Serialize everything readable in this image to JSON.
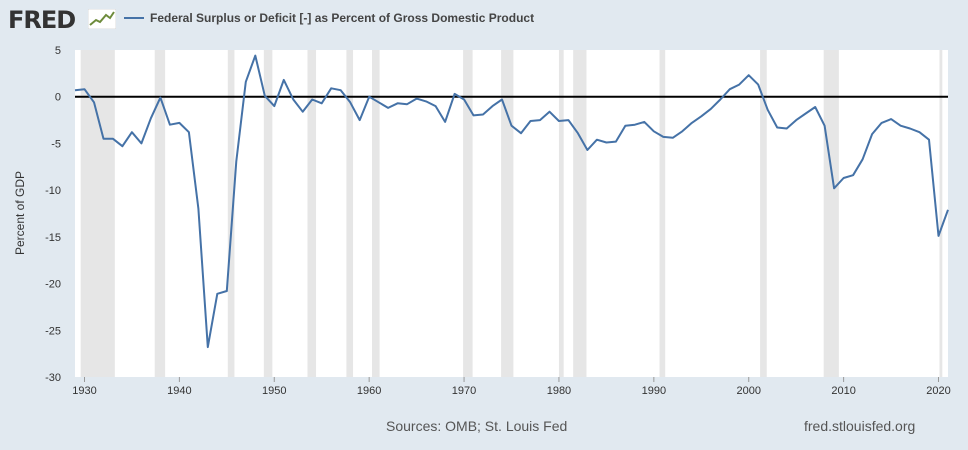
{
  "header": {
    "logo_text": "FRED",
    "logo_icon": "trend-line-icon",
    "legend_label": "Federal Surplus or Deficit [-] as Percent of Gross Domestic Product",
    "series_color": "#4572a7"
  },
  "footer": {
    "sources": "Sources: OMB; St. Louis Fed",
    "url": "fred.stlouisfed.org"
  },
  "chart_data": {
    "type": "line",
    "title": "",
    "xlabel": "",
    "ylabel": "Percent of GDP",
    "xlim": [
      1929,
      2021
    ],
    "ylim": [
      -30,
      5
    ],
    "yticks": [
      5,
      0,
      -5,
      -10,
      -15,
      -20,
      -25,
      -30
    ],
    "xticks": [
      1930,
      1940,
      1950,
      1960,
      1970,
      1980,
      1990,
      2000,
      2010,
      2020
    ],
    "grid": false,
    "zero_line": true,
    "recession_shading_color": "#e6e6e6",
    "recessions": [
      [
        1929.6,
        1933.2
      ],
      [
        1937.4,
        1938.5
      ],
      [
        1945.1,
        1945.8
      ],
      [
        1948.9,
        1949.8
      ],
      [
        1953.5,
        1954.4
      ],
      [
        1957.6,
        1958.3
      ],
      [
        1960.3,
        1961.1
      ],
      [
        1969.9,
        1970.9
      ],
      [
        1973.9,
        1975.2
      ],
      [
        1980.0,
        1980.5
      ],
      [
        1981.5,
        1982.9
      ],
      [
        1990.6,
        1991.2
      ],
      [
        2001.2,
        2001.9
      ],
      [
        2007.9,
        2009.5
      ],
      [
        2020.1,
        2020.4
      ]
    ],
    "series": [
      {
        "name": "Federal Surplus or Deficit [-] as Percent of Gross Domestic Product",
        "x": [
          1929,
          1930,
          1931,
          1932,
          1933,
          1934,
          1935,
          1936,
          1937,
          1938,
          1939,
          1940,
          1941,
          1942,
          1943,
          1944,
          1945,
          1946,
          1947,
          1948,
          1949,
          1950,
          1951,
          1952,
          1953,
          1954,
          1955,
          1956,
          1957,
          1958,
          1959,
          1960,
          1961,
          1962,
          1963,
          1964,
          1965,
          1966,
          1967,
          1968,
          1969,
          1970,
          1971,
          1972,
          1973,
          1974,
          1975,
          1976,
          1977,
          1978,
          1979,
          1980,
          1981,
          1982,
          1983,
          1984,
          1985,
          1986,
          1987,
          1988,
          1989,
          1990,
          1991,
          1992,
          1993,
          1994,
          1995,
          1996,
          1997,
          1998,
          1999,
          2000,
          2001,
          2002,
          2003,
          2004,
          2005,
          2006,
          2007,
          2008,
          2009,
          2010,
          2011,
          2012,
          2013,
          2014,
          2015,
          2016,
          2017,
          2018,
          2019,
          2020,
          2021
        ],
        "values": [
          0.7,
          0.8,
          -0.6,
          -4.5,
          -4.5,
          -5.3,
          -3.8,
          -5.0,
          -2.3,
          -0.1,
          -3.0,
          -2.8,
          -3.8,
          -12.0,
          -26.8,
          -21.1,
          -20.8,
          -6.9,
          1.6,
          4.4,
          0.1,
          -1.0,
          1.8,
          -0.3,
          -1.6,
          -0.3,
          -0.7,
          0.9,
          0.7,
          -0.6,
          -2.5,
          0.0,
          -0.6,
          -1.2,
          -0.7,
          -0.8,
          -0.2,
          -0.5,
          -1.0,
          -2.7,
          0.3,
          -0.3,
          -2.0,
          -1.9,
          -1.0,
          -0.3,
          -3.1,
          -3.9,
          -2.6,
          -2.5,
          -1.6,
          -2.6,
          -2.5,
          -3.9,
          -5.7,
          -4.6,
          -4.9,
          -4.8,
          -3.1,
          -3.0,
          -2.7,
          -3.7,
          -4.3,
          -4.4,
          -3.7,
          -2.8,
          -2.1,
          -1.3,
          -0.3,
          0.8,
          1.3,
          2.3,
          1.3,
          -1.4,
          -3.3,
          -3.4,
          -2.5,
          -1.8,
          -1.1,
          -3.1,
          -9.8,
          -8.7,
          -8.4,
          -6.7,
          -4.0,
          -2.8,
          -2.4,
          -3.1,
          -3.4,
          -3.8,
          -4.6,
          -14.9,
          -12.1
        ]
      }
    ]
  }
}
